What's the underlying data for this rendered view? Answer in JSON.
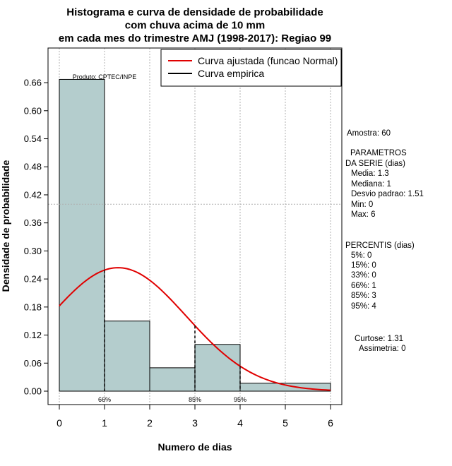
{
  "chart_data": {
    "type": "bar",
    "title_lines": [
      "Histograma e curva de densidade de probabilidade",
      "com chuva acima de 10 mm",
      "em cada mes do trimestre AMJ (1998-2017): Regiao 99"
    ],
    "xlabel": "Numero de dias",
    "ylabel": "Densidade de probabilidade",
    "xlim": [
      0,
      6
    ],
    "ylim": [
      0,
      0.7
    ],
    "x_ticks": [
      "0",
      "1",
      "2",
      "3",
      "4",
      "5",
      "6"
    ],
    "y_ticks": [
      "0.00",
      "0.06",
      "0.12",
      "0.18",
      "0.24",
      "0.30",
      "0.36",
      "0.42",
      "0.48",
      "0.54",
      "0.60",
      "0.66"
    ],
    "bins": [
      {
        "x0": 0,
        "x1": 1,
        "density": 0.667
      },
      {
        "x0": 1,
        "x1": 2,
        "density": 0.15
      },
      {
        "x0": 2,
        "x1": 3,
        "density": 0.05
      },
      {
        "x0": 3,
        "x1": 4,
        "density": 0.1
      },
      {
        "x0": 4,
        "x1": 6,
        "density": 0.017
      }
    ],
    "normal_fit": {
      "mean": 1.3,
      "sd": 1.51,
      "x_from": 0,
      "x_to": 6
    },
    "reference_line_y": 0.4,
    "percentile_markers": [
      {
        "x": 1,
        "label": "66%"
      },
      {
        "x": 3,
        "label": "85%"
      },
      {
        "x": 4,
        "label": "95%"
      }
    ],
    "product_label": "Produto: CPTEC/INPE",
    "legend": [
      {
        "label": "Curva ajustada (funcao Normal)",
        "color": "#e00000"
      },
      {
        "label": "Curva empirica",
        "color": "#000000"
      }
    ],
    "colors": {
      "bar_fill": "#b4cdcd",
      "curve": "#e00000",
      "grid": "#b0b0b0"
    }
  },
  "side_info": {
    "amostra": "Amostra: 60",
    "params_title_1": "PARAMETROS",
    "params_title_2": "DA SERIE (dias)",
    "media": "Media: 1.3",
    "mediana": "Mediana: 1",
    "desvio": "Desvio padrao: 1.51",
    "min": "Min: 0",
    "max": "Max: 6",
    "percentis_title": "PERCENTIS (dias)",
    "p5": "5%: 0",
    "p15": "15%: 0",
    "p33": "33%: 0",
    "p66": "66%: 1",
    "p85": "85%: 3",
    "p95": "95%: 4",
    "curtose": "Curtose: 1.31",
    "assimetria": "Assimetria: 0"
  }
}
